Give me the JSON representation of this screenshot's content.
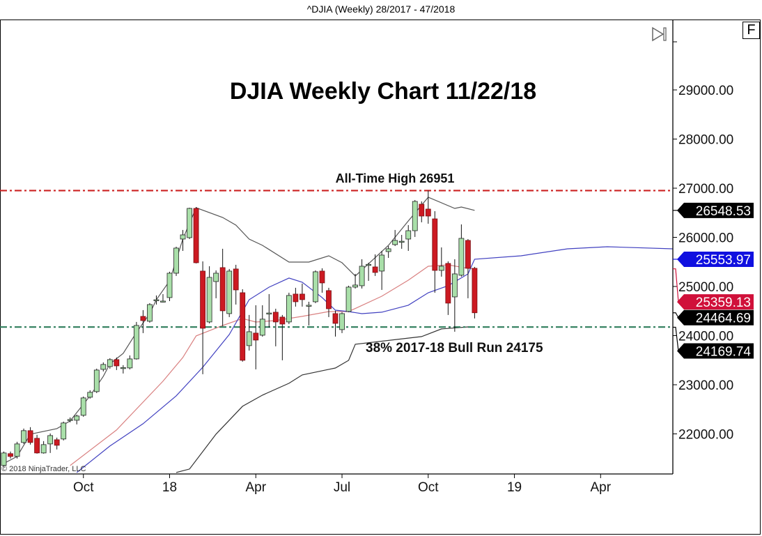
{
  "window": {
    "title": "^DJIA (Weekly)  28/2017 - 47/2018",
    "f_button": "F"
  },
  "copyright": "© 2018 NinjaTrader, LLC",
  "colors": {
    "up_fill": "#a9dfa9",
    "down_fill": "#cc1a22",
    "upper_band": "#555555",
    "red_line": "#d98080",
    "blue_line": "#4040c0",
    "ath_line": "#cc2222",
    "support_line": "#2e7d5b"
  },
  "icons": {
    "scroll_end": "skip-to-end-icon"
  },
  "chart_data": {
    "type": "candlestick",
    "title": "DJIA Weekly Chart 11/22/18",
    "ylim": [
      21190,
      30400
    ],
    "yticks": [
      22000,
      23000,
      24000,
      25000,
      26000,
      27000,
      28000,
      29000
    ],
    "ytick_labels": [
      "22000.00",
      "23000.00",
      "24000.00",
      "25000.00",
      "26000.00",
      "27000.00",
      "28000.00",
      "29000.00"
    ],
    "xticks": [
      {
        "date": "2017-10-02",
        "label": "Oct"
      },
      {
        "date": "2018-01-01",
        "label": "18"
      },
      {
        "date": "2018-04-02",
        "label": "Apr"
      },
      {
        "date": "2018-07-02",
        "label": "Jul"
      },
      {
        "date": "2018-10-01",
        "label": "Oct"
      },
      {
        "date": "2018-12-31",
        "label": "19"
      },
      {
        "date": "2019-04-01",
        "label": "Apr"
      }
    ],
    "grid": false,
    "ohlc_columns": [
      "date",
      "open",
      "high",
      "low",
      "close"
    ],
    "ohlc": [
      [
        "2017-07-10",
        21357,
        21640,
        21328,
        21612
      ],
      [
        "2017-07-17",
        21598,
        21640,
        21499,
        21541
      ],
      [
        "2017-07-24",
        21541,
        21839,
        21499,
        21796
      ],
      [
        "2017-07-31",
        21825,
        22108,
        21796,
        22066
      ],
      [
        "2017-08-07",
        22066,
        22137,
        21782,
        21825
      ],
      [
        "2017-08-14",
        21910,
        21981,
        21598,
        21612
      ],
      [
        "2017-08-21",
        21612,
        21853,
        21598,
        21782
      ],
      [
        "2017-08-28",
        21796,
        22009,
        21612,
        21966
      ],
      [
        "2017-09-04",
        21881,
        21924,
        21683,
        21768
      ],
      [
        "2017-09-11",
        21896,
        22250,
        21867,
        22222
      ],
      [
        "2017-09-18",
        22278,
        22335,
        22236,
        22293
      ],
      [
        "2017-09-25",
        22278,
        22392,
        22193,
        22364
      ],
      [
        "2017-10-02",
        22378,
        22760,
        22349,
        22732
      ],
      [
        "2017-10-09",
        22746,
        22888,
        22718,
        22846
      ],
      [
        "2017-10-16",
        22860,
        23328,
        22831,
        23299
      ],
      [
        "2017-10-23",
        23313,
        23455,
        23271,
        23413
      ],
      [
        "2017-10-30",
        23370,
        23540,
        23328,
        23512
      ],
      [
        "2017-11-06",
        23512,
        23554,
        23299,
        23384
      ],
      [
        "2017-11-13",
        23342,
        23399,
        23229,
        23350
      ],
      [
        "2017-11-20",
        23342,
        23597,
        23313,
        23526
      ],
      [
        "2017-11-27",
        23526,
        24278,
        23512,
        24207
      ],
      [
        "2017-12-04",
        24391,
        24519,
        24051,
        24306
      ],
      [
        "2017-12-11",
        24292,
        24661,
        24264,
        24632
      ],
      [
        "2017-12-18",
        24717,
        24817,
        24632,
        24730
      ],
      [
        "2017-12-25",
        24689,
        24845,
        24675,
        24703
      ],
      [
        "2018-01-01",
        24774,
        25299,
        24703,
        25270
      ],
      [
        "2018-01-08",
        25270,
        25809,
        25214,
        25781
      ],
      [
        "2018-01-15",
        25965,
        26150,
        25724,
        26050
      ],
      [
        "2018-01-22",
        25994,
        26603,
        25965,
        26589
      ],
      [
        "2018-01-29",
        26589,
        26617,
        25469,
        25483
      ],
      [
        "2018-02-05",
        25313,
        25511,
        23214,
        24150
      ],
      [
        "2018-02-12",
        24278,
        25412,
        24249,
        25185
      ],
      [
        "2018-02-19",
        25100,
        25327,
        24760,
        25270
      ],
      [
        "2018-02-26",
        25384,
        25767,
        24193,
        24505
      ],
      [
        "2018-03-05",
        24448,
        25356,
        24377,
        25313
      ],
      [
        "2018-03-12",
        25356,
        25441,
        24632,
        24930
      ],
      [
        "2018-03-19",
        24873,
        24944,
        23470,
        23498
      ],
      [
        "2018-03-26",
        23796,
        24420,
        23696,
        24079
      ],
      [
        "2018-04-02",
        24051,
        24618,
        23313,
        23909
      ],
      [
        "2018-04-09",
        24008,
        24618,
        23980,
        24335
      ],
      [
        "2018-04-16",
        24448,
        24845,
        24164,
        24460
      ],
      [
        "2018-04-23",
        24476,
        24547,
        23782,
        24278
      ],
      [
        "2018-04-30",
        24377,
        24420,
        23498,
        24235
      ],
      [
        "2018-05-07",
        24278,
        24873,
        24235,
        24817
      ],
      [
        "2018-05-14",
        24845,
        24973,
        24590,
        24689
      ],
      [
        "2018-05-21",
        24845,
        25058,
        24590,
        24732
      ],
      [
        "2018-05-28",
        24604,
        24689,
        24207,
        24618
      ],
      [
        "2018-06-04",
        24689,
        25327,
        24661,
        25299
      ],
      [
        "2018-06-11",
        25313,
        25370,
        24873,
        25072
      ],
      [
        "2018-06-18",
        24916,
        24973,
        24377,
        24547
      ],
      [
        "2018-06-25",
        24448,
        24505,
        23980,
        24249
      ],
      [
        "2018-07-02",
        24122,
        24476,
        24051,
        24448
      ],
      [
        "2018-07-09",
        24490,
        25015,
        24476,
        24987
      ],
      [
        "2018-07-16",
        24987,
        25256,
        24958,
        25029
      ],
      [
        "2018-07-23",
        25015,
        25554,
        24958,
        25412
      ],
      [
        "2018-07-30",
        25441,
        25483,
        25114,
        25450
      ],
      [
        "2018-08-06",
        25398,
        25653,
        25214,
        25285
      ],
      [
        "2018-08-13",
        25313,
        25724,
        24930,
        25639
      ],
      [
        "2018-08-20",
        25710,
        25823,
        25582,
        25767
      ],
      [
        "2018-08-27",
        25852,
        26150,
        25823,
        25937
      ],
      [
        "2018-09-03",
        25909,
        26050,
        25767,
        25920
      ],
      [
        "2018-09-10",
        25965,
        26249,
        25724,
        26135
      ],
      [
        "2018-09-17",
        26135,
        26759,
        26008,
        26731
      ],
      [
        "2018-09-24",
        26674,
        26731,
        26306,
        26433
      ],
      [
        "2018-10-01",
        26575,
        26951,
        26277,
        26433
      ],
      [
        "2018-10-08",
        26376,
        26532,
        24873,
        25327
      ],
      [
        "2018-10-15",
        25327,
        25795,
        25200,
        25412
      ],
      [
        "2018-10-22",
        25469,
        25511,
        24420,
        24661
      ],
      [
        "2018-10-29",
        24788,
        25554,
        24079,
        25256
      ],
      [
        "2018-11-05",
        25228,
        26263,
        25200,
        25979
      ],
      [
        "2018-11-12",
        25937,
        25965,
        24760,
        25370
      ],
      [
        "2018-11-19",
        25370,
        25398,
        24349,
        24464.69
      ]
    ],
    "lines": [
      {
        "key": "upper_band",
        "color": "#555555",
        "points": [
          [
            "2017-07-10",
            21399
          ],
          [
            "2017-07-24",
            21541
          ],
          [
            "2017-08-07",
            21995
          ],
          [
            "2017-09-04",
            22108
          ],
          [
            "2017-09-18",
            22264
          ],
          [
            "2017-10-09",
            22774
          ],
          [
            "2017-10-23",
            23171
          ],
          [
            "2017-10-30",
            23426
          ],
          [
            "2017-11-13",
            23639
          ],
          [
            "2017-11-27",
            24065
          ],
          [
            "2017-12-11",
            24447
          ],
          [
            "2017-12-18",
            24731
          ],
          [
            "2018-01-01",
            25114
          ],
          [
            "2018-01-15",
            25965
          ],
          [
            "2018-01-29",
            26603
          ],
          [
            "2018-02-26",
            26404
          ],
          [
            "2018-03-12",
            26248
          ],
          [
            "2018-03-26",
            25965
          ],
          [
            "2018-04-09",
            25837
          ],
          [
            "2018-05-07",
            25497
          ],
          [
            "2018-05-28",
            25497
          ],
          [
            "2018-06-18",
            25624
          ],
          [
            "2018-07-02",
            25483
          ],
          [
            "2018-07-16",
            25213
          ],
          [
            "2018-08-20",
            25837
          ],
          [
            "2018-09-10",
            26333
          ],
          [
            "2018-10-01",
            26816
          ],
          [
            "2018-10-29",
            26589
          ],
          [
            "2018-11-05",
            26617
          ],
          [
            "2018-11-19",
            26548.53
          ]
        ]
      },
      {
        "key": "lower_band",
        "color": "#333333",
        "points": [
          [
            "2018-01-08",
            21214
          ],
          [
            "2018-01-22",
            21285
          ],
          [
            "2018-02-19",
            21995
          ],
          [
            "2018-03-19",
            22562
          ],
          [
            "2018-04-09",
            22788
          ],
          [
            "2018-05-07",
            23030
          ],
          [
            "2018-05-21",
            23200
          ],
          [
            "2018-06-18",
            23313
          ],
          [
            "2018-06-25",
            23341
          ],
          [
            "2018-07-09",
            23497
          ],
          [
            "2018-07-16",
            23824
          ],
          [
            "2018-09-24",
            23980
          ],
          [
            "2018-10-15",
            24136
          ],
          [
            "2018-11-12",
            24178
          ],
          [
            "2018-11-19",
            24169.74
          ]
        ]
      },
      {
        "key": "red_line",
        "color": "#d98080",
        "points": [
          [
            "2017-09-18",
            21356
          ],
          [
            "2017-11-06",
            22079
          ],
          [
            "2017-12-25",
            23072
          ],
          [
            "2018-01-15",
            23554
          ],
          [
            "2018-01-29",
            23994
          ],
          [
            "2018-02-26",
            24206
          ],
          [
            "2018-03-19",
            24348
          ],
          [
            "2018-04-02",
            24277
          ],
          [
            "2018-04-23",
            24306
          ],
          [
            "2018-05-21",
            24391
          ],
          [
            "2018-06-18",
            24490
          ],
          [
            "2018-07-09",
            24490
          ],
          [
            "2018-08-13",
            24802
          ],
          [
            "2018-09-10",
            25128
          ],
          [
            "2018-10-01",
            25412
          ],
          [
            "2018-10-22",
            25440
          ],
          [
            "2018-11-12",
            25369
          ],
          [
            "2018-11-19",
            25359.13
          ]
        ]
      },
      {
        "key": "blue_line",
        "color": "#4040c0",
        "points": [
          [
            "2017-09-25",
            21214
          ],
          [
            "2017-10-30",
            21753
          ],
          [
            "2017-12-04",
            22207
          ],
          [
            "2018-01-08",
            22774
          ],
          [
            "2018-02-05",
            23356
          ],
          [
            "2018-03-05",
            24022
          ],
          [
            "2018-03-26",
            24731
          ],
          [
            "2018-04-16",
            24986
          ],
          [
            "2018-05-07",
            25171
          ],
          [
            "2018-05-21",
            25086
          ],
          [
            "2018-06-11",
            24774
          ],
          [
            "2018-06-25",
            24518
          ],
          [
            "2018-07-09",
            24490
          ],
          [
            "2018-07-23",
            24447
          ],
          [
            "2018-08-13",
            24476
          ],
          [
            "2018-09-10",
            24618
          ],
          [
            "2018-10-01",
            24873
          ],
          [
            "2018-10-22",
            25015
          ],
          [
            "2018-11-12",
            25256
          ],
          [
            "2018-11-19",
            25553.97
          ],
          [
            "2019-01-07",
            25624
          ],
          [
            "2019-02-25",
            25766
          ],
          [
            "2019-04-08",
            25809
          ],
          [
            "2019-06-17",
            25766
          ]
        ]
      }
    ],
    "hlines": [
      {
        "value": 26951,
        "color": "#cc2222",
        "label": "All-Time High 26951"
      },
      {
        "value": 24175,
        "color": "#2e7d5b",
        "label": "38% 2017-18 Bull Run 24175"
      }
    ],
    "price_markers": [
      {
        "value": 26548.53,
        "label": "26548.53",
        "bg": "#000000",
        "fg": "#ffffff"
      },
      {
        "value": 25553.97,
        "label": "25553.97",
        "bg": "#1010e0",
        "fg": "#ffffff"
      },
      {
        "value": 25359.13,
        "label": "25359.13",
        "bg": "#d0103a",
        "fg": "#ffffff"
      },
      {
        "value": 24464.69,
        "label": "24464.69",
        "bg": "#000000",
        "fg": "#ffffff"
      },
      {
        "value": 24169.74,
        "label": "24169.74",
        "bg": "#000000",
        "fg": "#ffffff"
      }
    ]
  }
}
